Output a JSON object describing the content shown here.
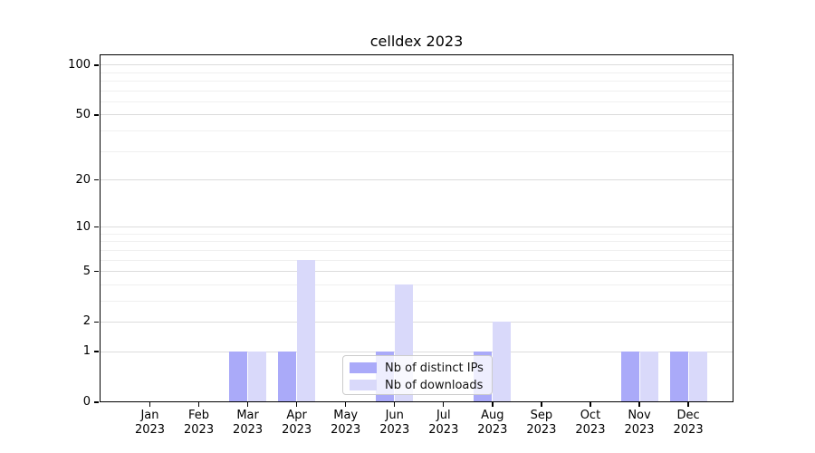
{
  "title": "celldex 2023",
  "colors": {
    "bar_distinct_ips": "#aaaaf9",
    "bar_downloads": "#d9d9fa",
    "grid_major": "#dcdcdc",
    "grid_minor": "#f0f0f0",
    "axis": "#000000",
    "legend_border": "#cccccc"
  },
  "chart_data": {
    "type": "bar",
    "title": "celldex 2023",
    "categories": [
      "Jan 2023",
      "Feb 2023",
      "Mar 2023",
      "Apr 2023",
      "May 2023",
      "Jun 2023",
      "Jul 2023",
      "Aug 2023",
      "Sep 2023",
      "Oct 2023",
      "Nov 2023",
      "Dec 2023"
    ],
    "x_months": [
      "Jan",
      "Feb",
      "Mar",
      "Apr",
      "May",
      "Jun",
      "Jul",
      "Aug",
      "Sep",
      "Oct",
      "Nov",
      "Dec"
    ],
    "x_year": "2023",
    "series": [
      {
        "name": "Nb of distinct IPs",
        "color_key": "bar_distinct_ips",
        "values": [
          0,
          0,
          1,
          1,
          0,
          1,
          0,
          1,
          0,
          0,
          1,
          1
        ]
      },
      {
        "name": "Nb of downloads",
        "color_key": "bar_downloads",
        "values": [
          0,
          0,
          1,
          6,
          0,
          4,
          0,
          2,
          0,
          0,
          1,
          1
        ]
      }
    ],
    "xlabel": "",
    "ylabel": "",
    "yscale": "log1p",
    "ylim": [
      0,
      116
    ],
    "y_ticks": [
      0,
      1,
      2,
      5,
      10,
      20,
      50,
      100
    ],
    "y_minor_gridlines": [
      3,
      4,
      6,
      7,
      8,
      9,
      30,
      40,
      60,
      70,
      80,
      90
    ],
    "grid": "horizontal",
    "legend_position": "inside-bottom-center"
  }
}
